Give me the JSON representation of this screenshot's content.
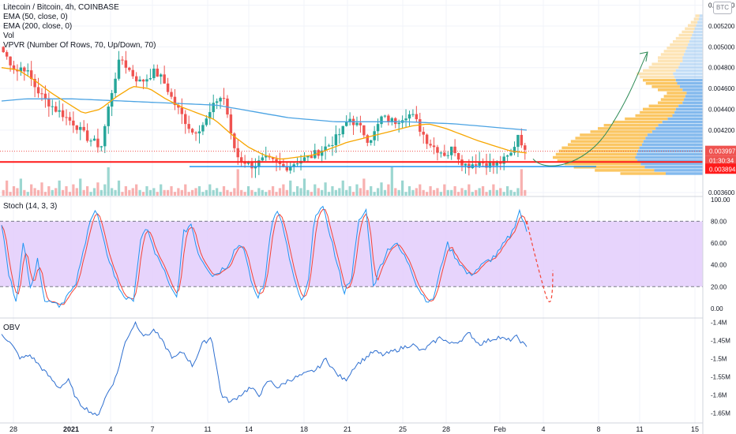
{
  "header": {
    "symbol_line": "Litecoin / Bitcoin, 4h, COINBASE",
    "indicators": [
      "EMA (50, close, 0)",
      "EMA (200, close, 0)",
      "Vol",
      "VPVR (Number Of Rows, 70, Up/Down, 70)"
    ],
    "currency_badge": "BTC"
  },
  "colors": {
    "up": "#26a69a",
    "down": "#ef5350",
    "ema50": "#f7a600",
    "ema200": "#4ba3e3",
    "stoch_k": "#2196f3",
    "stoch_d": "#f44336",
    "stoch_band": "#e1c9fb",
    "obv": "#2e6fd0",
    "support": "#ff1a1a",
    "support_blue": "#2196f3",
    "projection_green": "#2e8b57",
    "vpvr_up": "#fbc35a",
    "vpvr_down": "#7cb5ec",
    "price_badge_up": "#ef5350",
    "countdown_badge": "#ef5350"
  },
  "x_axis": {
    "labels": [
      "28",
      "2021",
      "4",
      "7",
      "11",
      "14",
      "18",
      "21",
      "25",
      "28",
      "Feb",
      "4",
      "8",
      "11",
      "15"
    ]
  },
  "price_axis": {
    "ticks": [
      "0.005400",
      "0.005200",
      "0.005000",
      "0.004800",
      "0.004600",
      "0.004400",
      "0.004200",
      "0.003600"
    ],
    "last_price": "0.003997",
    "countdown": "01:30:34",
    "support_level": "0.003894"
  },
  "stoch_axis": {
    "ticks": [
      "100.00",
      "80.00",
      "60.00",
      "40.00",
      "20.00",
      "0.00"
    ],
    "label": "Stoch (14, 3, 3)"
  },
  "obv_axis": {
    "ticks": [
      "-1.4M",
      "-1.45M",
      "-1.5M",
      "-1.55M",
      "-1.6M",
      "-1.65M"
    ],
    "label": "OBV"
  },
  "chart_data": [
    {
      "type": "candlestick",
      "title": "Litecoin / Bitcoin, 4h, COINBASE",
      "ylim": [
        0.00357,
        0.00545
      ],
      "close_keypoints": [
        0.00495,
        0.00486,
        0.00476,
        0.00482,
        0.00472,
        0.0046,
        0.00452,
        0.00446,
        0.0044,
        0.00436,
        0.0043,
        0.00426,
        0.00418,
        0.00412,
        0.00408,
        0.00404,
        0.00438,
        0.00468,
        0.0049,
        0.0048,
        0.00472,
        0.00466,
        0.0047,
        0.00476,
        0.00472,
        0.00462,
        0.00448,
        0.00438,
        0.00428,
        0.00418,
        0.00422,
        0.00428,
        0.0044,
        0.00452,
        0.0045,
        0.0041,
        0.00394,
        0.0039,
        0.00386,
        0.00388,
        0.00392,
        0.0039,
        0.00388,
        0.00384,
        0.00386,
        0.0039,
        0.00392,
        0.00394,
        0.00398,
        0.00402,
        0.00406,
        0.00412,
        0.0042,
        0.00432,
        0.00426,
        0.0042,
        0.0041,
        0.00418,
        0.00432,
        0.0043,
        0.00428,
        0.00432,
        0.00436,
        0.00432,
        0.0042,
        0.0041,
        0.00404,
        0.004,
        0.00396,
        0.00404,
        0.00392,
        0.00386,
        0.00388,
        0.0039,
        0.00388,
        0.00386,
        0.00388,
        0.00392,
        0.00398,
        0.00418,
        0.00398
      ],
      "ema50_keypoints": [
        0.0048,
        0.00478,
        0.00468,
        0.00456,
        0.00446,
        0.00436,
        0.0044,
        0.00452,
        0.00462,
        0.0046,
        0.0045,
        0.00442,
        0.00436,
        0.0043,
        0.00416,
        0.00404,
        0.00396,
        0.00392,
        0.00394,
        0.00396,
        0.00402,
        0.00408,
        0.00412,
        0.00416,
        0.0042,
        0.00424,
        0.00426,
        0.00422,
        0.00416,
        0.0041,
        0.00405,
        0.004,
        0.00398
      ],
      "ema200_keypoints": [
        0.00448,
        0.0045,
        0.0045,
        0.0045,
        0.00449,
        0.00448,
        0.00447,
        0.00446,
        0.00445,
        0.00444,
        0.0044,
        0.00436,
        0.00432,
        0.0043,
        0.00428,
        0.00428,
        0.00428,
        0.00428,
        0.00427,
        0.00426,
        0.00424,
        0.00422,
        0.0042
      ],
      "last_price": 0.003997,
      "support_level": 0.003894,
      "support_blue_level": 0.00385,
      "projection_target": 0.00495
    },
    {
      "type": "volume",
      "pattern": [
        3,
        8,
        2,
        5,
        4,
        9,
        3,
        2,
        6,
        4,
        3,
        7,
        2,
        5,
        3,
        4,
        8,
        3,
        5,
        2,
        6,
        4,
        9,
        3,
        5,
        2,
        4,
        7,
        3,
        6,
        15,
        4,
        3,
        8,
        2,
        5,
        3,
        4,
        6,
        3,
        2,
        5,
        3,
        4,
        2,
        6,
        3,
        3,
        5,
        2,
        4,
        3,
        6,
        2,
        3,
        4,
        5,
        2,
        3,
        6,
        3,
        4,
        2,
        5,
        3,
        2,
        4,
        14,
        3,
        2,
        5,
        3,
        2,
        4,
        3,
        2,
        3,
        5,
        2,
        4,
        6
      ]
    },
    {
      "type": "horizontal_bar",
      "title": "VPVR (Number Of Rows, 70, Up/Down, 70)",
      "note": "volume profile: relative row volume, bottom to top",
      "rows_bottom_to_top": [
        0.55,
        0.72,
        0.86,
        0.92,
        0.97,
        1.0,
        0.98,
        0.96,
        0.94,
        0.9,
        0.88,
        0.85,
        0.82,
        0.75,
        0.7,
        0.66,
        0.6,
        0.52,
        0.45,
        0.42,
        0.4,
        0.36,
        0.3,
        0.28,
        0.26,
        0.24,
        0.3,
        0.34,
        0.38,
        0.4,
        0.42,
        0.44,
        0.4,
        0.36,
        0.34,
        0.3,
        0.3,
        0.28,
        0.26,
        0.24,
        0.22,
        0.2,
        0.18,
        0.16,
        0.14,
        0.12,
        0.1,
        0.08,
        0.06,
        0.05
      ],
      "up_share": 0.55
    },
    {
      "type": "line",
      "title": "Stoch (14, 3, 3)",
      "ylim": [
        -8,
        102
      ],
      "bands": [
        20,
        80
      ],
      "k_keypoints": [
        78,
        30,
        8,
        60,
        20,
        45,
        5,
        8,
        3,
        12,
        18,
        45,
        80,
        90,
        60,
        40,
        20,
        10,
        5,
        60,
        75,
        50,
        40,
        20,
        10,
        70,
        78,
        50,
        40,
        30,
        35,
        40,
        55,
        60,
        30,
        10,
        20,
        80,
        90,
        60,
        30,
        5,
        20,
        88,
        92,
        70,
        40,
        15,
        30,
        80,
        90,
        20,
        40,
        55,
        60,
        50,
        40,
        20,
        10,
        5,
        30,
        60,
        50,
        40,
        30,
        35,
        40,
        45,
        50,
        60,
        70,
        90,
        70
      ],
      "projection": [
        80,
        40,
        15,
        35
      ],
      "ticks": [
        100,
        80,
        60,
        40,
        20,
        0
      ]
    },
    {
      "type": "line",
      "title": "OBV",
      "ylim": [
        -1.675,
        -1.39
      ],
      "keypoints": [
        -1.43,
        -1.46,
        -1.5,
        -1.49,
        -1.52,
        -1.55,
        -1.58,
        -1.56,
        -1.62,
        -1.64,
        -1.66,
        -1.6,
        -1.55,
        -1.45,
        -1.4,
        -1.44,
        -1.42,
        -1.46,
        -1.5,
        -1.48,
        -1.52,
        -1.46,
        -1.44,
        -1.6,
        -1.62,
        -1.6,
        -1.58,
        -1.6,
        -1.56,
        -1.58,
        -1.56,
        -1.55,
        -1.54,
        -1.53,
        -1.5,
        -1.54,
        -1.56,
        -1.52,
        -1.5,
        -1.48,
        -1.49,
        -1.48,
        -1.47,
        -1.46,
        -1.48,
        -1.46,
        -1.44,
        -1.46,
        -1.45,
        -1.43,
        -1.46,
        -1.45,
        -1.44,
        -1.45,
        -1.44,
        -1.47
      ],
      "ticks": [
        -1.4,
        -1.45,
        -1.5,
        -1.55,
        -1.6,
        -1.65
      ]
    }
  ]
}
